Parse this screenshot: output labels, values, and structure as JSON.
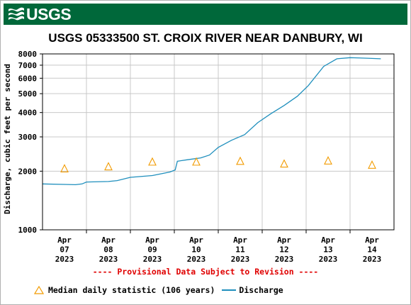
{
  "header": {
    "logo_text": "USGS",
    "logo_icon": "usgs-wave-icon",
    "banner_color": "#00683a"
  },
  "chart_data": {
    "type": "line",
    "title": "USGS 05333500 ST. CROIX RIVER NEAR DANBURY, WI",
    "ylabel": "Discharge, cubic feet per second",
    "xlabel": "",
    "yscale": "log",
    "ylim": [
      1000,
      8000
    ],
    "yticks": [
      1000,
      2000,
      3000,
      4000,
      5000,
      6000,
      7000,
      8000
    ],
    "ytick_labels": [
      "1000",
      "2000",
      "3000",
      "4000",
      "5000",
      "6000",
      "7000",
      "8000"
    ],
    "xlim": [
      0,
      8
    ],
    "xticks": [
      {
        "x": 0.5,
        "label": [
          "Apr",
          "07",
          "2023"
        ]
      },
      {
        "x": 1.5,
        "label": [
          "Apr",
          "08",
          "2023"
        ]
      },
      {
        "x": 2.5,
        "label": [
          "Apr",
          "09",
          "2023"
        ]
      },
      {
        "x": 3.5,
        "label": [
          "Apr",
          "10",
          "2023"
        ]
      },
      {
        "x": 4.5,
        "label": [
          "Apr",
          "11",
          "2023"
        ]
      },
      {
        "x": 5.5,
        "label": [
          "Apr",
          "12",
          "2023"
        ]
      },
      {
        "x": 6.5,
        "label": [
          "Apr",
          "13",
          "2023"
        ]
      },
      {
        "x": 7.5,
        "label": [
          "Apr",
          "14",
          "2023"
        ]
      }
    ],
    "grid": true,
    "series": [
      {
        "name": "Discharge",
        "color": "#1f8fbd",
        "points": [
          [
            0,
            1720
          ],
          [
            0.5,
            1710
          ],
          [
            0.75,
            1705
          ],
          [
            0.9,
            1720
          ],
          [
            1.0,
            1760
          ],
          [
            1.5,
            1770
          ],
          [
            1.7,
            1790
          ],
          [
            2.0,
            1860
          ],
          [
            2.5,
            1900
          ],
          [
            2.9,
            1980
          ],
          [
            3.02,
            2030
          ],
          [
            3.07,
            2250
          ],
          [
            3.3,
            2290
          ],
          [
            3.6,
            2340
          ],
          [
            3.8,
            2420
          ],
          [
            4.0,
            2650
          ],
          [
            4.3,
            2880
          ],
          [
            4.6,
            3080
          ],
          [
            4.9,
            3550
          ],
          [
            5.2,
            3950
          ],
          [
            5.5,
            4350
          ],
          [
            5.8,
            4850
          ],
          [
            6.05,
            5500
          ],
          [
            6.4,
            6900
          ],
          [
            6.7,
            7550
          ],
          [
            7.0,
            7650
          ],
          [
            7.4,
            7600
          ],
          [
            7.7,
            7550
          ]
        ]
      },
      {
        "name": "Median daily statistic (106 years)",
        "color": "#f29b00",
        "marker": "triangle",
        "points": [
          [
            0.5,
            2050
          ],
          [
            1.5,
            2100
          ],
          [
            2.5,
            2220
          ],
          [
            3.5,
            2220
          ],
          [
            4.5,
            2240
          ],
          [
            5.5,
            2170
          ],
          [
            6.5,
            2250
          ],
          [
            7.5,
            2140
          ]
        ]
      }
    ],
    "annotation": "---- Provisional Data Subject to Revision ----",
    "legend": {
      "position": "bottom",
      "median_label": "Median daily statistic (106 years)",
      "discharge_label": "Discharge"
    }
  }
}
